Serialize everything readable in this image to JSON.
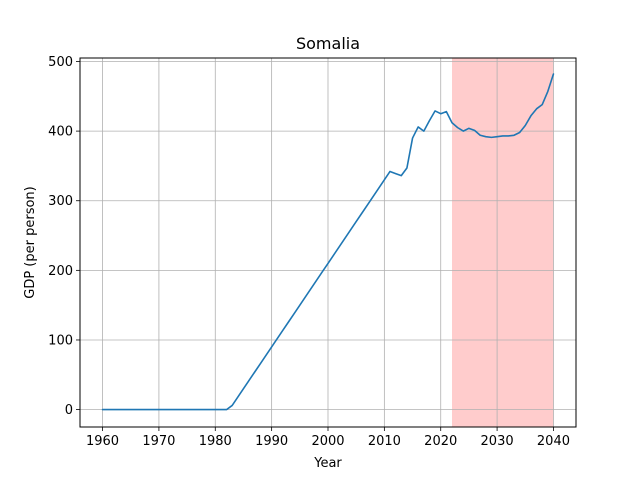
{
  "chart_data": {
    "type": "line",
    "title": "Somalia",
    "xlabel": "Year",
    "ylabel": "GDP (per person)",
    "xlim": [
      1956,
      2044
    ],
    "ylim": [
      -25,
      505
    ],
    "xticks": [
      1960,
      1970,
      1980,
      1990,
      2000,
      2010,
      2020,
      2030,
      2040
    ],
    "yticks": [
      0,
      100,
      200,
      300,
      400,
      500
    ],
    "grid": true,
    "line_color": "#1f77b4",
    "highlight": {
      "x_start": 2022,
      "x_end": 2040,
      "color": "#ffcccc"
    },
    "series": [
      {
        "x": [
          1960,
          1965,
          1970,
          1975,
          1980,
          1982,
          1983,
          1984,
          1985,
          1986,
          1987,
          1988,
          1989,
          1990,
          1991,
          1992,
          1993,
          1994,
          1995,
          1996,
          1997,
          1998,
          1999,
          2000,
          2001,
          2002,
          2003,
          2004,
          2005,
          2006,
          2007,
          2008,
          2009,
          2010,
          2011,
          2012,
          2013,
          2014,
          2015,
          2016,
          2017,
          2018,
          2019,
          2020,
          2021,
          2022,
          2023,
          2024,
          2025,
          2026,
          2027,
          2028,
          2029,
          2030,
          2031,
          2032,
          2033,
          2034,
          2035,
          2036,
          2037,
          2038,
          2039,
          2040
        ],
        "y": [
          0,
          0,
          0,
          0,
          0,
          0,
          6,
          18,
          30,
          42,
          54,
          66,
          78,
          90,
          102,
          114,
          126,
          138,
          150,
          162,
          174,
          186,
          198,
          210,
          222,
          234,
          246,
          258,
          270,
          282,
          294,
          306,
          318,
          330,
          342,
          339,
          336,
          347,
          390,
          406,
          400,
          415,
          429,
          425,
          428,
          412,
          405,
          400,
          404,
          401,
          394,
          392,
          391,
          392,
          393,
          393,
          394,
          398,
          408,
          422,
          432,
          438,
          457,
          482
        ]
      }
    ]
  }
}
